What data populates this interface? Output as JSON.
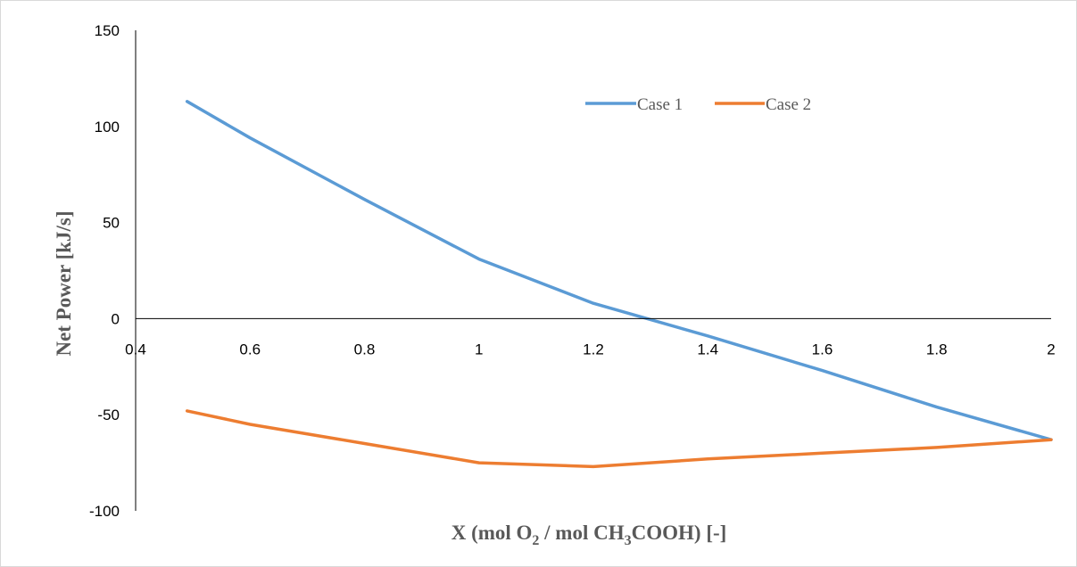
{
  "chart_data": {
    "type": "line",
    "title": "",
    "xlabel": "X (mol O2 / mol CH3COOH) [-]",
    "xlabel_parts": {
      "p1": "X (mol O",
      "sub1": "2",
      "p2": " / mol CH",
      "sub2": "3",
      "p3": "COOH) [-]"
    },
    "ylabel": "Net Power [kJ/s]",
    "xlim": [
      0.4,
      2
    ],
    "ylim": [
      -100,
      150
    ],
    "x_ticks": [
      "0.4",
      "0.6",
      "0.8",
      "1",
      "1.2",
      "1.4",
      "1.6",
      "1.8",
      "2"
    ],
    "y_ticks": [
      "150",
      "100",
      "50",
      "0",
      "-50",
      "-100"
    ],
    "grid": false,
    "legend_position": "top-center",
    "series": [
      {
        "name": "Case 1",
        "color": "#5b9bd5",
        "points": [
          [
            0.49,
            113
          ],
          [
            0.6,
            94
          ],
          [
            0.8,
            62
          ],
          [
            1.0,
            31
          ],
          [
            1.2,
            8
          ],
          [
            1.4,
            -9
          ],
          [
            1.6,
            -27
          ],
          [
            1.8,
            -46
          ],
          [
            2.0,
            -63
          ]
        ]
      },
      {
        "name": "Case 2",
        "color": "#ed7d31",
        "points": [
          [
            0.49,
            -48
          ],
          [
            0.6,
            -55
          ],
          [
            0.8,
            -65
          ],
          [
            1.0,
            -75
          ],
          [
            1.2,
            -77
          ],
          [
            1.4,
            -73
          ],
          [
            1.6,
            -70
          ],
          [
            1.8,
            -67
          ],
          [
            2.0,
            -63
          ]
        ]
      }
    ]
  }
}
